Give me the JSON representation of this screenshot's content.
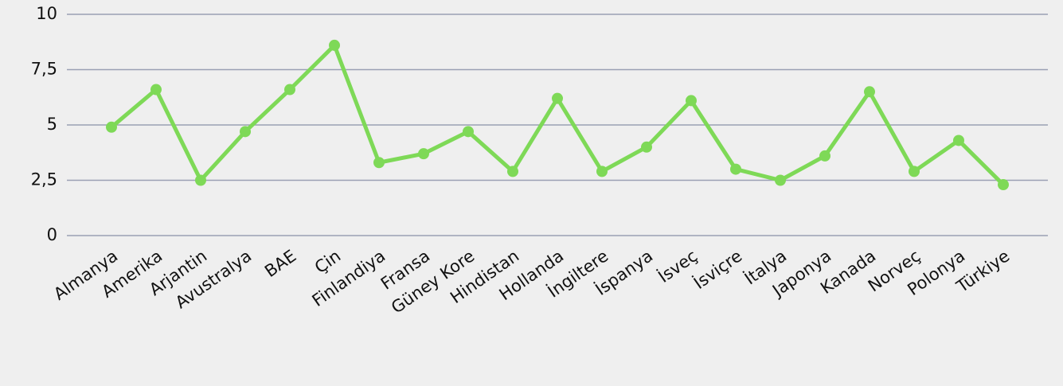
{
  "chart_data": {
    "type": "line",
    "categories": [
      "Almanya",
      "Amerika",
      "Arjantin",
      "Avustralya",
      "BAE",
      "Çin",
      "Finlandiya",
      "Fransa",
      "Güney Kore",
      "Hindistan",
      "Hollanda",
      "İngiltere",
      "İspanya",
      "İsveç",
      "İsviçre",
      "İtalya",
      "Japonya",
      "Kanada",
      "Norveç",
      "Polonya",
      "Türkiye"
    ],
    "series": [
      {
        "name": "",
        "color": "#7ed957",
        "values": [
          4.9,
          6.6,
          2.5,
          4.7,
          6.6,
          8.6,
          3.3,
          3.7,
          4.7,
          2.9,
          6.2,
          2.9,
          4.0,
          6.1,
          3.0,
          2.5,
          3.6,
          6.5,
          2.9,
          4.3,
          2.3
        ]
      }
    ],
    "ylim": [
      0,
      10
    ],
    "yticks": [
      0,
      {
        "value": 2.5,
        "label": "2,5"
      },
      5,
      {
        "value": 7.5,
        "label": "7,5"
      },
      10
    ],
    "grid": true
  }
}
